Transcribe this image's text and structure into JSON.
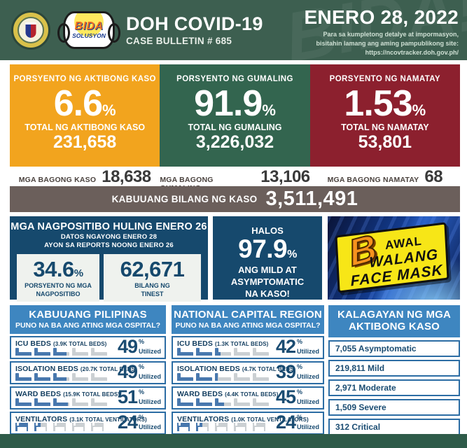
{
  "colors": {
    "header_green": "#3D5F50",
    "footer_green": "#2E5B49",
    "active_orange": "#F2A41E",
    "recovered_green": "#33654F",
    "deaths_red": "#8C202E",
    "total_taupe": "#6B5F5B",
    "navy_box": "#16496D",
    "panel_header_blue": "#3E86C0",
    "panel_border_blue": "#2C6DA4",
    "navy_text": "#1A4C72",
    "bed_fill_blue": "#4878AE",
    "bed_empty_gray": "#CBD0D3",
    "sign_yellow": "#F7E617",
    "sign_letter_orange": "#F6921E"
  },
  "header": {
    "title": "DOH COVID-19",
    "bulletin": "CASE BULLETIN # 685",
    "date": "ENERO 28, 2022",
    "note1": "Para sa kumpletong detalye at impormasyon,",
    "note2": "bisitahin lamang ang aming pampublikong site:",
    "note3": "https://ncovtracker.doh.gov.ph/",
    "watermark": "BIDA!",
    "bida_logo_line1": "BIDA",
    "bida_logo_line2": "SOLUSYON"
  },
  "stats": [
    {
      "label": "PORSYENTO NG AKTIBONG KASO",
      "value": "6.6",
      "unit": "%",
      "total_label": "TOTAL NG AKTIBONG KASO",
      "total": "231,658"
    },
    {
      "label": "PORSYENTO NG GUMALING",
      "value": "91.9",
      "unit": "%",
      "total_label": "TOTAL NG GUMALING",
      "total": "3,226,032"
    },
    {
      "label": "PORSYENTO NG NAMATAY",
      "value": "1.53",
      "unit": "%",
      "total_label": "TOTAL NG NAMATAY",
      "total": "53,801"
    }
  ],
  "new_row": [
    {
      "label": "MGA BAGONG KASO",
      "value": "18,638"
    },
    {
      "label": "MGA BAGONG GUMALING",
      "value": "13,106"
    },
    {
      "label": "MGA BAGONG NAMATAY",
      "value": "68"
    }
  ],
  "total_bar": {
    "label": "KABUUANG BILANG NG KASO",
    "value": "3,511,491"
  },
  "positivity": {
    "title": "MGA NAGPOSITIBO HULING ENERO 26",
    "subtitle1": "DATOS NGAYONG ENERO 28",
    "subtitle2": "AYON SA REPORTS NOONG ENERO 26",
    "cards": [
      {
        "value": "34.6",
        "unit": "%",
        "label1": "PORSYENTO NG MGA",
        "label2": "NAGPOSITIBO"
      },
      {
        "value": "62,671",
        "unit": "",
        "label1": "BILANG NG",
        "label2": "TINEST"
      }
    ]
  },
  "mild_box": {
    "line1": "HALOS",
    "value": "97.9",
    "unit": "%",
    "line2": "ANG MILD AT",
    "line3": "ASYMPTOMATIC",
    "line4": "NA KASO!"
  },
  "mask_sign": {
    "big_letter": "B",
    "line1": "AWAL",
    "line2": "WALANG",
    "line3": "FACE MASK"
  },
  "hospitals": {
    "ph": {
      "title": "KABUUANG PILIPINAS",
      "subtitle": "PUNO NA BA ANG ATING MGA OSPITAL?",
      "rows": [
        {
          "label": "ICU BEDS",
          "total": "(3.9K TOTAL BEDS)",
          "percent": 49
        },
        {
          "label": "ISOLATION BEDS",
          "total": "(20.7K TOTAL BEDS)",
          "percent": 49
        },
        {
          "label": "WARD BEDS",
          "total": "(15.9K TOTAL BEDS)",
          "percent": 51
        },
        {
          "label": "VENTILATORS",
          "total": "(3.1K TOTAL VENTILATORS)",
          "percent": 24
        }
      ]
    },
    "ncr": {
      "title": "NATIONAL CAPITAL REGION",
      "subtitle": "PUNO NA BA ANG ATING MGA OSPITAL?",
      "rows": [
        {
          "label": "ICU BEDS",
          "total": "(1.3K TOTAL BEDS)",
          "percent": 42
        },
        {
          "label": "ISOLATION BEDS",
          "total": "(4.7K TOTAL BEDS)",
          "percent": 39
        },
        {
          "label": "WARD BEDS",
          "total": "(4.4K TOTAL BEDS)",
          "percent": 45
        },
        {
          "label": "VENTILATORS",
          "total": "(1.0K TOTAL VENTILATORS)",
          "percent": 24
        }
      ]
    }
  },
  "active_breakdown": {
    "title1": "KALAGAYAN NG MGA",
    "title2": "AKTIBONG KASO",
    "items": [
      "7,055 Asymptomatic",
      "219,811 Mild",
      "2,971 Moderate",
      "1,509 Severe",
      "312 Critical"
    ]
  },
  "strings": {
    "percent_sign": "%",
    "utilized": "Utilized"
  }
}
